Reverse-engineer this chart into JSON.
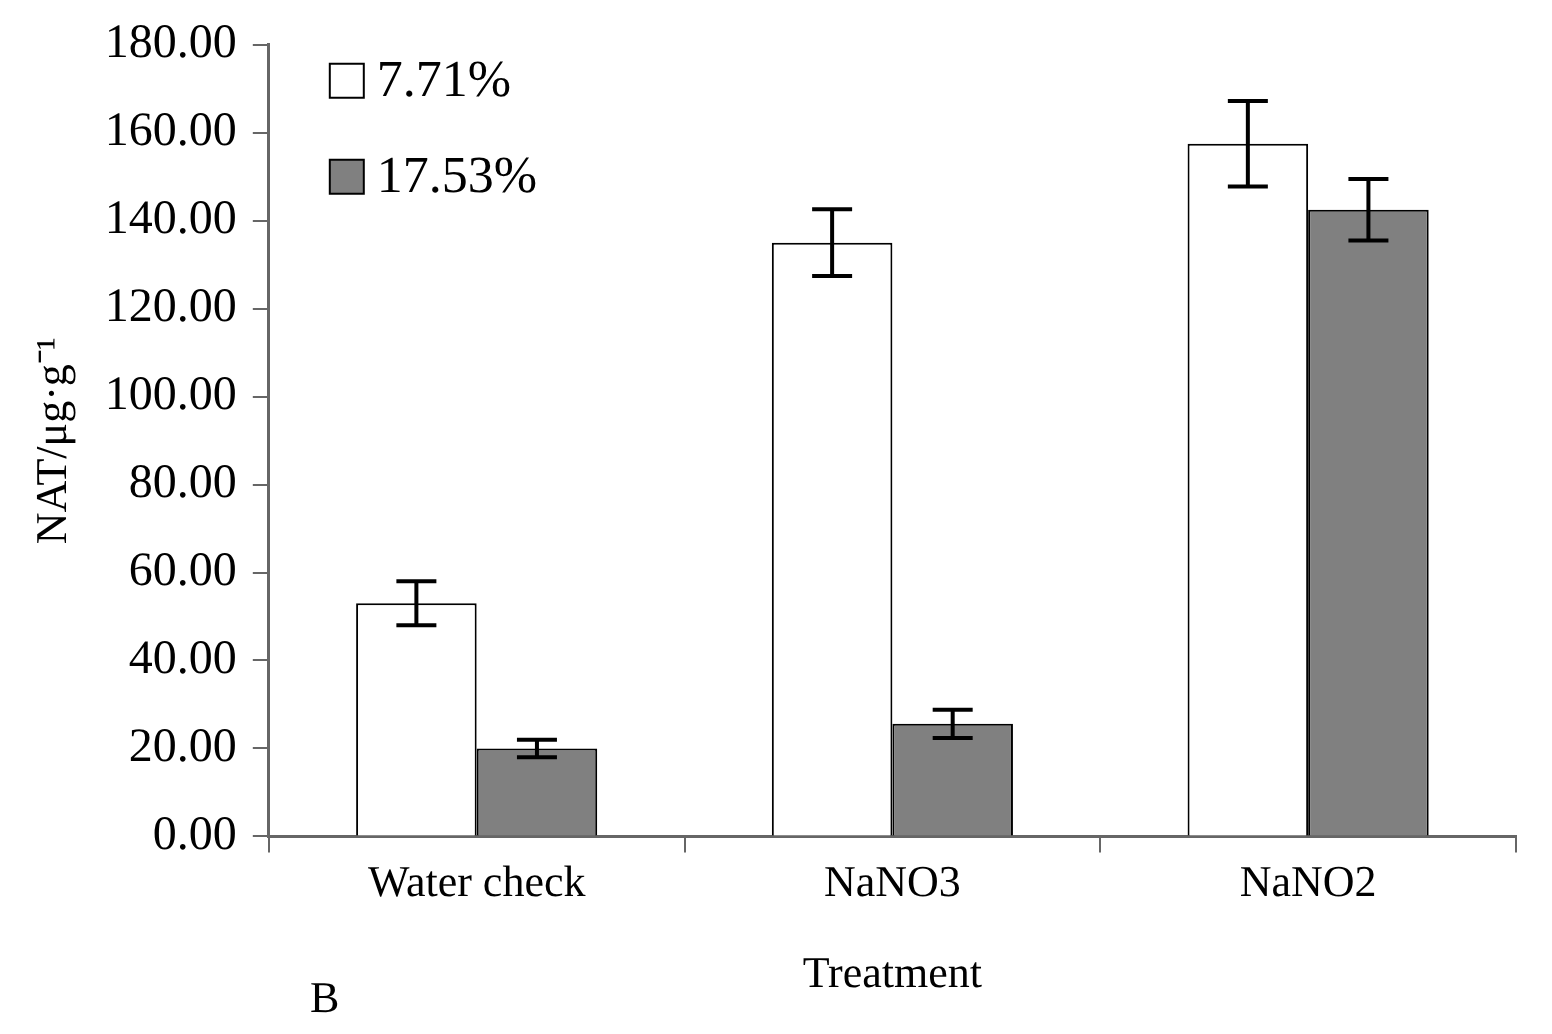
{
  "chart_data": {
    "type": "bar",
    "xlabel": "Treatment",
    "ylabel": "NAT/μg·g⁻¹",
    "annotations": [
      "B"
    ],
    "categories": [
      "Water check",
      "NaNO3",
      "NaNO2"
    ],
    "series": [
      {
        "name": "7.71%",
        "color": "#ffffff",
        "values": [
          53,
          135,
          157.5
        ],
        "errors": [
          5,
          7.6,
          9.7
        ]
      },
      {
        "name": "17.53%",
        "color": "#808080",
        "values": [
          20,
          25.6,
          142.5
        ],
        "errors": [
          2,
          3.2,
          7
        ]
      }
    ],
    "ylim": [
      0,
      180
    ],
    "yticks": [
      {
        "value": 0,
        "label": "0.00"
      },
      {
        "value": 20,
        "label": "20.00"
      },
      {
        "value": 40,
        "label": "40.00"
      },
      {
        "value": 60,
        "label": "60.00"
      },
      {
        "value": 80,
        "label": "80.00"
      },
      {
        "value": 100,
        "label": "100.00"
      },
      {
        "value": 120,
        "label": "120.00"
      },
      {
        "value": 140,
        "label": "140.00"
      },
      {
        "value": 160,
        "label": "160.00"
      },
      {
        "value": 180,
        "label": "180.00"
      }
    ],
    "grid": false,
    "legend": "top left"
  }
}
